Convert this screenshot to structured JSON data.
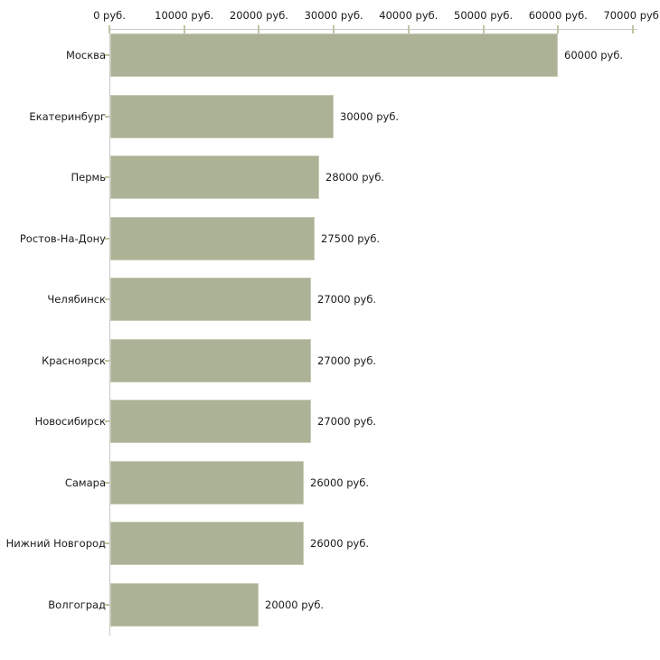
{
  "chart_data": {
    "type": "bar",
    "orientation": "horizontal",
    "categories": [
      "Москва",
      "Екатеринбург",
      "Пермь",
      "Ростов-На-Дону",
      "Челябинск",
      "Красноярск",
      "Новосибирск",
      "Самара",
      "Нижний Новгород",
      "Волгоград"
    ],
    "values": [
      60000,
      30000,
      28000,
      27500,
      27000,
      27000,
      27000,
      26000,
      26000,
      20000
    ],
    "value_labels": [
      "60000 руб.",
      "30000 руб.",
      "28000 руб.",
      "27500 руб.",
      "27000 руб.",
      "27000 руб.",
      "27000 руб.",
      "26000 руб.",
      "26000 руб.",
      "20000 руб."
    ],
    "unit": "руб.",
    "xlim": [
      0,
      70000
    ],
    "x_ticks": [
      {
        "value": 0,
        "label": "0 руб."
      },
      {
        "value": 10000,
        "label": "10000 руб."
      },
      {
        "value": 20000,
        "label": "20000 руб."
      },
      {
        "value": 30000,
        "label": "30000 руб."
      },
      {
        "value": 40000,
        "label": "40000 руб."
      },
      {
        "value": 50000,
        "label": "50000 руб."
      },
      {
        "value": 60000,
        "label": "60000 руб."
      },
      {
        "value": 70000,
        "label": "70000 руб."
      }
    ],
    "grid": false,
    "legend": false,
    "colors": {
      "bar_fill": "#abb296",
      "bar_edge": "#c7cbb5",
      "axis_line": "#c9c9c9",
      "tick_mark": "#c0c4a2",
      "text": "#1a1a1a",
      "background": "#ffffff"
    }
  }
}
